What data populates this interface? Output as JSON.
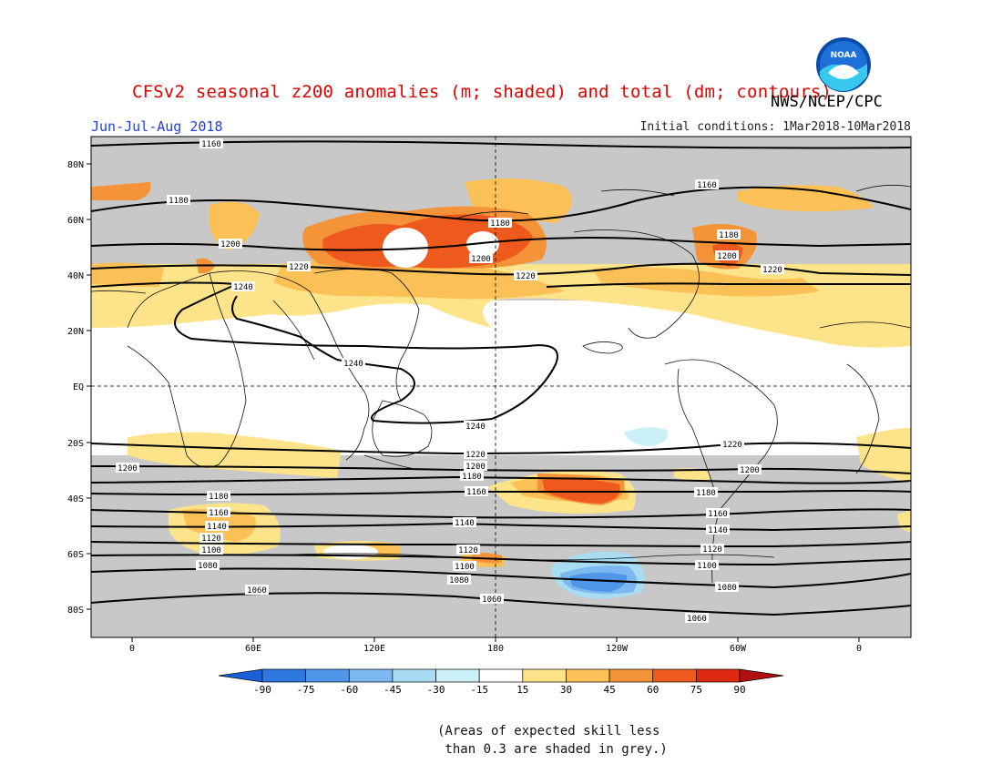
{
  "header": {
    "title": "CFSv2 seasonal z200 anomalies (m; shaded) and total (dm; contours)",
    "agency": "NWS/NCEP/CPC",
    "season": "Jun-Jul-Aug 2018",
    "initial_conditions": "Initial conditions: 1Mar2018-10Mar2018",
    "logo_text": "NOAA"
  },
  "axes": {
    "lat_labels": [
      "80N",
      "60N",
      "40N",
      "20N",
      "EQ",
      "20S",
      "40S",
      "60S",
      "80S"
    ],
    "lon_labels": [
      "0",
      "60E",
      "120E",
      "180",
      "120W",
      "60W",
      "0"
    ]
  },
  "contour_labels": [
    "1160",
    "1180",
    "1200",
    "1220",
    "1240",
    "1240",
    "1240",
    "1180",
    "1200",
    "1220",
    "1160",
    "1180",
    "1200",
    "1220",
    "1220",
    "1200",
    "1220",
    "1200",
    "1200",
    "1180",
    "1160",
    "1140",
    "1120",
    "1100",
    "1080",
    "1060",
    "1180",
    "1160",
    "1140",
    "1120",
    "1100",
    "1080",
    "1060",
    "1180",
    "1160",
    "1140",
    "1120",
    "1100",
    "1080",
    "1060"
  ],
  "colorbar": {
    "ticks": [
      "-90",
      "-75",
      "-60",
      "-45",
      "-30",
      "-15",
      "15",
      "30",
      "45",
      "60",
      "75",
      "90"
    ],
    "colors": [
      "#1a5fd6",
      "#2f78e0",
      "#4f95e8",
      "#7db7ef",
      "#a8dcf3",
      "#cbf0f8",
      "#ffffff",
      "#fde48a",
      "#fbc157",
      "#f59338",
      "#ee5a1e",
      "#dd2a10",
      "#b01010"
    ]
  },
  "skill_note": {
    "line1": "(Areas of expected skill less",
    "line2": " than 0.3 are shaded in grey.)"
  },
  "colors": {
    "grey_low_skill": "#c8c8c8",
    "title_red": "#e00000",
    "season_blue": "#1f3fe0"
  }
}
